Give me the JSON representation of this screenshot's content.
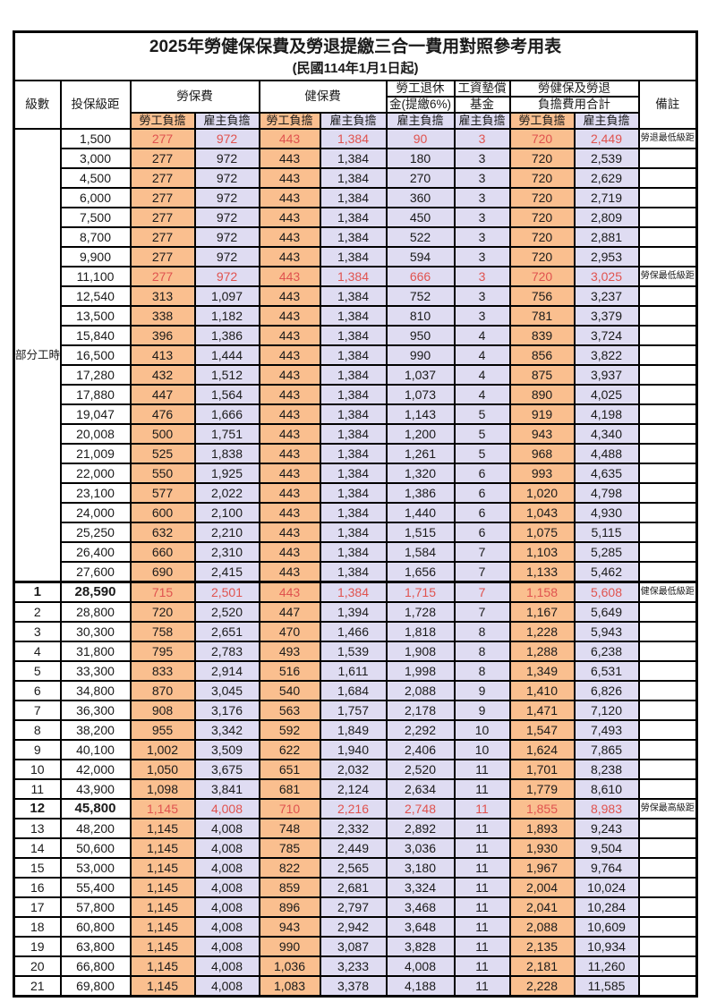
{
  "title": "2025年勞健保保費及勞退提繳三合一費用對照參考用表",
  "subtitle": "(民國114年1月1日起)",
  "header": {
    "level": "級數",
    "bracket": "投保級距",
    "labor_insurance": "勞保費",
    "health_insurance": "健保費",
    "pension_line1": "勞工退休",
    "pension_line2": "金(提繳6%)",
    "wage_fund_line1": "工資墊償",
    "wage_fund_line2": "基金",
    "total_line1": "勞健保及勞退",
    "total_line2": "負擔費用合計",
    "remark": "備註",
    "sub_labor": "勞工負擔",
    "sub_employer": "雇主負擔"
  },
  "part_time_label": "部分工時",
  "colors": {
    "labor_bg": "#FABF8F",
    "employer_bg": "#DFDCF2",
    "highlight_text": "#E0534F",
    "border": "#000000"
  },
  "rows": [
    {
      "level": "",
      "bracket": "1,500",
      "values": [
        "277",
        "972",
        "443",
        "1,384",
        "90",
        "3",
        "720",
        "2,449"
      ],
      "remark": "勞退最低級距",
      "highlight": true,
      "bold": false,
      "sep": false
    },
    {
      "level": "",
      "bracket": "3,000",
      "values": [
        "277",
        "972",
        "443",
        "1,384",
        "180",
        "3",
        "720",
        "2,539"
      ],
      "remark": "",
      "highlight": false,
      "bold": false,
      "sep": false
    },
    {
      "level": "",
      "bracket": "4,500",
      "values": [
        "277",
        "972",
        "443",
        "1,384",
        "270",
        "3",
        "720",
        "2,629"
      ],
      "remark": "",
      "highlight": false,
      "bold": false,
      "sep": false
    },
    {
      "level": "",
      "bracket": "6,000",
      "values": [
        "277",
        "972",
        "443",
        "1,384",
        "360",
        "3",
        "720",
        "2,719"
      ],
      "remark": "",
      "highlight": false,
      "bold": false,
      "sep": false
    },
    {
      "level": "",
      "bracket": "7,500",
      "values": [
        "277",
        "972",
        "443",
        "1,384",
        "450",
        "3",
        "720",
        "2,809"
      ],
      "remark": "",
      "highlight": false,
      "bold": false,
      "sep": false
    },
    {
      "level": "",
      "bracket": "8,700",
      "values": [
        "277",
        "972",
        "443",
        "1,384",
        "522",
        "3",
        "720",
        "2,881"
      ],
      "remark": "",
      "highlight": false,
      "bold": false,
      "sep": false
    },
    {
      "level": "",
      "bracket": "9,900",
      "values": [
        "277",
        "972",
        "443",
        "1,384",
        "594",
        "3",
        "720",
        "2,953"
      ],
      "remark": "",
      "highlight": false,
      "bold": false,
      "sep": false
    },
    {
      "level": "",
      "bracket": "11,100",
      "values": [
        "277",
        "972",
        "443",
        "1,384",
        "666",
        "3",
        "720",
        "3,025"
      ],
      "remark": "勞保最低級距",
      "highlight": true,
      "bold": false,
      "sep": false
    },
    {
      "level": "",
      "bracket": "12,540",
      "values": [
        "313",
        "1,097",
        "443",
        "1,384",
        "752",
        "3",
        "756",
        "3,237"
      ],
      "remark": "",
      "highlight": false,
      "bold": false,
      "sep": false
    },
    {
      "level": "",
      "bracket": "13,500",
      "values": [
        "338",
        "1,182",
        "443",
        "1,384",
        "810",
        "3",
        "781",
        "3,379"
      ],
      "remark": "",
      "highlight": false,
      "bold": false,
      "sep": false
    },
    {
      "level": "",
      "bracket": "15,840",
      "values": [
        "396",
        "1,386",
        "443",
        "1,384",
        "950",
        "4",
        "839",
        "3,724"
      ],
      "remark": "",
      "highlight": false,
      "bold": false,
      "sep": false
    },
    {
      "level": "",
      "bracket": "16,500",
      "values": [
        "413",
        "1,444",
        "443",
        "1,384",
        "990",
        "4",
        "856",
        "3,822"
      ],
      "remark": "",
      "highlight": false,
      "bold": false,
      "sep": false
    },
    {
      "level": "",
      "bracket": "17,280",
      "values": [
        "432",
        "1,512",
        "443",
        "1,384",
        "1,037",
        "4",
        "875",
        "3,937"
      ],
      "remark": "",
      "highlight": false,
      "bold": false,
      "sep": false
    },
    {
      "level": "",
      "bracket": "17,880",
      "values": [
        "447",
        "1,564",
        "443",
        "1,384",
        "1,073",
        "4",
        "890",
        "4,025"
      ],
      "remark": "",
      "highlight": false,
      "bold": false,
      "sep": false
    },
    {
      "level": "",
      "bracket": "19,047",
      "values": [
        "476",
        "1,666",
        "443",
        "1,384",
        "1,143",
        "5",
        "919",
        "4,198"
      ],
      "remark": "",
      "highlight": false,
      "bold": false,
      "sep": false
    },
    {
      "level": "",
      "bracket": "20,008",
      "values": [
        "500",
        "1,751",
        "443",
        "1,384",
        "1,200",
        "5",
        "943",
        "4,340"
      ],
      "remark": "",
      "highlight": false,
      "bold": false,
      "sep": false
    },
    {
      "level": "",
      "bracket": "21,009",
      "values": [
        "525",
        "1,838",
        "443",
        "1,384",
        "1,261",
        "5",
        "968",
        "4,488"
      ],
      "remark": "",
      "highlight": false,
      "bold": false,
      "sep": false
    },
    {
      "level": "",
      "bracket": "22,000",
      "values": [
        "550",
        "1,925",
        "443",
        "1,384",
        "1,320",
        "6",
        "993",
        "4,635"
      ],
      "remark": "",
      "highlight": false,
      "bold": false,
      "sep": false
    },
    {
      "level": "",
      "bracket": "23,100",
      "values": [
        "577",
        "2,022",
        "443",
        "1,384",
        "1,386",
        "6",
        "1,020",
        "4,798"
      ],
      "remark": "",
      "highlight": false,
      "bold": false,
      "sep": false
    },
    {
      "level": "",
      "bracket": "24,000",
      "values": [
        "600",
        "2,100",
        "443",
        "1,384",
        "1,440",
        "6",
        "1,043",
        "4,930"
      ],
      "remark": "",
      "highlight": false,
      "bold": false,
      "sep": false
    },
    {
      "level": "",
      "bracket": "25,250",
      "values": [
        "632",
        "2,210",
        "443",
        "1,384",
        "1,515",
        "6",
        "1,075",
        "5,115"
      ],
      "remark": "",
      "highlight": false,
      "bold": false,
      "sep": false
    },
    {
      "level": "",
      "bracket": "26,400",
      "values": [
        "660",
        "2,310",
        "443",
        "1,384",
        "1,584",
        "7",
        "1,103",
        "5,285"
      ],
      "remark": "",
      "highlight": false,
      "bold": false,
      "sep": false
    },
    {
      "level": "",
      "bracket": "27,600",
      "values": [
        "690",
        "2,415",
        "443",
        "1,384",
        "1,656",
        "7",
        "1,133",
        "5,462"
      ],
      "remark": "",
      "highlight": false,
      "bold": false,
      "sep": false
    },
    {
      "level": "1",
      "bracket": "28,590",
      "values": [
        "715",
        "2,501",
        "443",
        "1,384",
        "1,715",
        "7",
        "1,158",
        "5,608"
      ],
      "remark": "健保最低級距",
      "highlight": true,
      "bold": true,
      "sep": true
    },
    {
      "level": "2",
      "bracket": "28,800",
      "values": [
        "720",
        "2,520",
        "447",
        "1,394",
        "1,728",
        "7",
        "1,167",
        "5,649"
      ],
      "remark": "",
      "highlight": false,
      "bold": false,
      "sep": false
    },
    {
      "level": "3",
      "bracket": "30,300",
      "values": [
        "758",
        "2,651",
        "470",
        "1,466",
        "1,818",
        "8",
        "1,228",
        "5,943"
      ],
      "remark": "",
      "highlight": false,
      "bold": false,
      "sep": false
    },
    {
      "level": "4",
      "bracket": "31,800",
      "values": [
        "795",
        "2,783",
        "493",
        "1,539",
        "1,908",
        "8",
        "1,288",
        "6,238"
      ],
      "remark": "",
      "highlight": false,
      "bold": false,
      "sep": false
    },
    {
      "level": "5",
      "bracket": "33,300",
      "values": [
        "833",
        "2,914",
        "516",
        "1,611",
        "1,998",
        "8",
        "1,349",
        "6,531"
      ],
      "remark": "",
      "highlight": false,
      "bold": false,
      "sep": false
    },
    {
      "level": "6",
      "bracket": "34,800",
      "values": [
        "870",
        "3,045",
        "540",
        "1,684",
        "2,088",
        "9",
        "1,410",
        "6,826"
      ],
      "remark": "",
      "highlight": false,
      "bold": false,
      "sep": false
    },
    {
      "level": "7",
      "bracket": "36,300",
      "values": [
        "908",
        "3,176",
        "563",
        "1,757",
        "2,178",
        "9",
        "1,471",
        "7,120"
      ],
      "remark": "",
      "highlight": false,
      "bold": false,
      "sep": false
    },
    {
      "level": "8",
      "bracket": "38,200",
      "values": [
        "955",
        "3,342",
        "592",
        "1,849",
        "2,292",
        "10",
        "1,547",
        "7,493"
      ],
      "remark": "",
      "highlight": false,
      "bold": false,
      "sep": false
    },
    {
      "level": "9",
      "bracket": "40,100",
      "values": [
        "1,002",
        "3,509",
        "622",
        "1,940",
        "2,406",
        "10",
        "1,624",
        "7,865"
      ],
      "remark": "",
      "highlight": false,
      "bold": false,
      "sep": false
    },
    {
      "level": "10",
      "bracket": "42,000",
      "values": [
        "1,050",
        "3,675",
        "651",
        "2,032",
        "2,520",
        "11",
        "1,701",
        "8,238"
      ],
      "remark": "",
      "highlight": false,
      "bold": false,
      "sep": false
    },
    {
      "level": "11",
      "bracket": "43,900",
      "values": [
        "1,098",
        "3,841",
        "681",
        "2,124",
        "2,634",
        "11",
        "1,779",
        "8,610"
      ],
      "remark": "",
      "highlight": false,
      "bold": false,
      "sep": false
    },
    {
      "level": "12",
      "bracket": "45,800",
      "values": [
        "1,145",
        "4,008",
        "710",
        "2,216",
        "2,748",
        "11",
        "1,855",
        "8,983"
      ],
      "remark": "勞保最高級距",
      "highlight": true,
      "bold": true,
      "sep": false
    },
    {
      "level": "13",
      "bracket": "48,200",
      "values": [
        "1,145",
        "4,008",
        "748",
        "2,332",
        "2,892",
        "11",
        "1,893",
        "9,243"
      ],
      "remark": "",
      "highlight": false,
      "bold": false,
      "sep": false
    },
    {
      "level": "14",
      "bracket": "50,600",
      "values": [
        "1,145",
        "4,008",
        "785",
        "2,449",
        "3,036",
        "11",
        "1,930",
        "9,504"
      ],
      "remark": "",
      "highlight": false,
      "bold": false,
      "sep": false
    },
    {
      "level": "15",
      "bracket": "53,000",
      "values": [
        "1,145",
        "4,008",
        "822",
        "2,565",
        "3,180",
        "11",
        "1,967",
        "9,764"
      ],
      "remark": "",
      "highlight": false,
      "bold": false,
      "sep": false
    },
    {
      "level": "16",
      "bracket": "55,400",
      "values": [
        "1,145",
        "4,008",
        "859",
        "2,681",
        "3,324",
        "11",
        "2,004",
        "10,024"
      ],
      "remark": "",
      "highlight": false,
      "bold": false,
      "sep": false
    },
    {
      "level": "17",
      "bracket": "57,800",
      "values": [
        "1,145",
        "4,008",
        "896",
        "2,797",
        "3,468",
        "11",
        "2,041",
        "10,284"
      ],
      "remark": "",
      "highlight": false,
      "bold": false,
      "sep": false
    },
    {
      "level": "18",
      "bracket": "60,800",
      "values": [
        "1,145",
        "4,008",
        "943",
        "2,942",
        "3,648",
        "11",
        "2,088",
        "10,609"
      ],
      "remark": "",
      "highlight": false,
      "bold": false,
      "sep": false
    },
    {
      "level": "19",
      "bracket": "63,800",
      "values": [
        "1,145",
        "4,008",
        "990",
        "3,087",
        "3,828",
        "11",
        "2,135",
        "10,934"
      ],
      "remark": "",
      "highlight": false,
      "bold": false,
      "sep": false
    },
    {
      "level": "20",
      "bracket": "66,800",
      "values": [
        "1,145",
        "4,008",
        "1,036",
        "3,233",
        "4,008",
        "11",
        "2,181",
        "11,260"
      ],
      "remark": "",
      "highlight": false,
      "bold": false,
      "sep": false
    },
    {
      "level": "21",
      "bracket": "69,800",
      "values": [
        "1,145",
        "4,008",
        "1,083",
        "3,378",
        "4,188",
        "11",
        "2,228",
        "11,585"
      ],
      "remark": "",
      "highlight": false,
      "bold": false,
      "sep": false
    }
  ],
  "value_column_kinds": [
    "labor",
    "emp",
    "labor",
    "emp",
    "emp",
    "emp",
    "labor",
    "emp"
  ],
  "part_time_row_count": 23
}
